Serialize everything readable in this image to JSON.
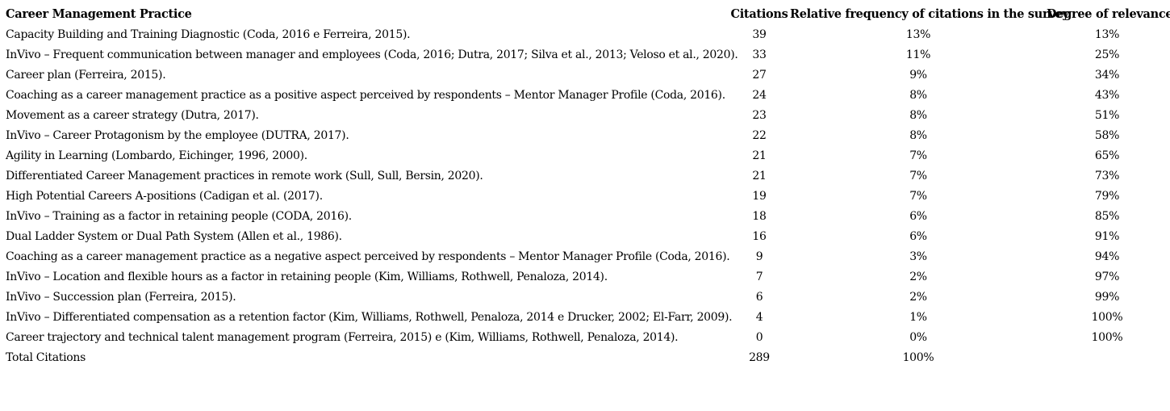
{
  "table": {
    "headers": {
      "practice": "Career Management Practice",
      "citations": "Citations",
      "relative_frequency": "Relative frequency of citations in the survey",
      "degree_of_relevance": "Degree of relevance"
    },
    "rows": [
      {
        "practice": "Capacity Building and Training Diagnostic (Coda, 2016 e Ferreira, 2015).",
        "citations": "39",
        "relative_frequency": "13%",
        "degree_of_relevance": "13%"
      },
      {
        "practice": "InVivo – Frequent communication between manager and employees (Coda, 2016; Dutra, 2017; Silva et al., 2013; Veloso et al., 2020).",
        "citations": "33",
        "relative_frequency": "11%",
        "degree_of_relevance": "25%"
      },
      {
        "practice": "Career plan (Ferreira, 2015).",
        "citations": "27",
        "relative_frequency": "9%",
        "degree_of_relevance": "34%"
      },
      {
        "practice": "Coaching as a career management practice as a positive aspect perceived by respondents – Mentor Manager Profile (Coda, 2016).",
        "citations": "24",
        "relative_frequency": "8%",
        "degree_of_relevance": "43%"
      },
      {
        "practice": "Movement as a career strategy (Dutra, 2017).",
        "citations": "23",
        "relative_frequency": "8%",
        "degree_of_relevance": "51%"
      },
      {
        "practice": "InVivo – Career Protagonism by the employee (DUTRA, 2017).",
        "citations": "22",
        "relative_frequency": "8%",
        "degree_of_relevance": "58%"
      },
      {
        "practice": "Agility in Learning (Lombardo, Eichinger, 1996, 2000).",
        "citations": "21",
        "relative_frequency": "7%",
        "degree_of_relevance": "65%"
      },
      {
        "practice": "Differentiated Career Management practices in remote work (Sull, Sull, Bersin, 2020).",
        "citations": "21",
        "relative_frequency": "7%",
        "degree_of_relevance": "73%"
      },
      {
        "practice": "High Potential Careers A-positions (Cadigan et al. (2017).",
        "citations": "19",
        "relative_frequency": "7%",
        "degree_of_relevance": "79%"
      },
      {
        "practice": "InVivo – Training as a factor in retaining people (CODA, 2016).",
        "citations": "18",
        "relative_frequency": "6%",
        "degree_of_relevance": "85%"
      },
      {
        "practice": "Dual Ladder System or Dual Path System (Allen et al., 1986).",
        "citations": "16",
        "relative_frequency": "6%",
        "degree_of_relevance": "91%"
      },
      {
        "practice": "Coaching as a career management practice as a negative aspect perceived by respondents – Mentor Manager Profile (Coda, 2016).",
        "citations": "9",
        "relative_frequency": "3%",
        "degree_of_relevance": "94%"
      },
      {
        "practice": "InVivo – Location and flexible hours as a factor in retaining people (Kim, Williams, Rothwell, Penaloza, 2014).",
        "citations": "7",
        "relative_frequency": "2%",
        "degree_of_relevance": "97%"
      },
      {
        "practice": "InVivo – Succession plan (Ferreira, 2015).",
        "citations": "6",
        "relative_frequency": "2%",
        "degree_of_relevance": "99%"
      },
      {
        "practice": "InVivo – Differentiated compensation as a retention factor (Kim, Williams, Rothwell, Penaloza, 2014 e Drucker, 2002; El-Farr, 2009).",
        "citations": "4",
        "relative_frequency": "1%",
        "degree_of_relevance": "100%"
      },
      {
        "practice": "Career trajectory and technical talent management program (Ferreira, 2015) e (Kim, Williams, Rothwell, Penaloza, 2014).",
        "citations": "0",
        "relative_frequency": "0%",
        "degree_of_relevance": "100%"
      }
    ],
    "footer": {
      "label": "Total Citations",
      "citations": "289",
      "relative_frequency": "100%",
      "degree_of_relevance": ""
    }
  },
  "colors": {
    "text": "#000000",
    "background": "#ffffff"
  }
}
